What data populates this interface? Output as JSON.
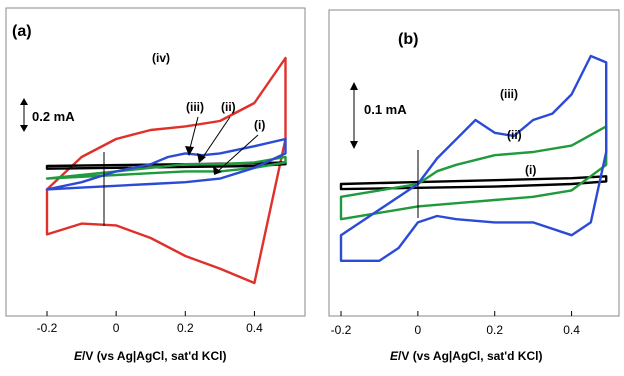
{
  "chart_data": [
    {
      "id": "a",
      "type": "line",
      "panel_label": "(a)",
      "xlabel": {
        "symbol": "E",
        "rest": "/V (vs Ag|AgCl, sat'd KCl)"
      },
      "xlim": [
        -0.2,
        0.5
      ],
      "xticks": [
        -0.2,
        0,
        0.2,
        0.4
      ],
      "tick_labels": [
        "-0.2",
        "0",
        "0.2",
        "0.4"
      ],
      "current_units": "mA",
      "scale_bar": {
        "label": "0.2 mA",
        "value": 0.2
      },
      "series": [
        {
          "name": "(i)",
          "color": "#000000",
          "x": [
            -0.2,
            0.0,
            0.2,
            0.4,
            0.49,
            0.49,
            0.4,
            0.2,
            0.0,
            -0.2,
            -0.2
          ],
          "y": [
            0.05,
            0.055,
            0.06,
            0.065,
            0.07,
            0.06,
            0.05,
            0.045,
            0.04,
            0.035,
            0.05
          ]
        },
        {
          "name": "(ii)",
          "color": "#1f9a3c",
          "x": [
            -0.2,
            -0.1,
            0.0,
            0.1,
            0.2,
            0.3,
            0.4,
            0.49,
            0.49,
            0.4,
            0.3,
            0.2,
            0.1,
            0.0,
            -0.1,
            -0.2,
            -0.2
          ],
          "y": [
            -0.02,
            0.0,
            0.02,
            0.04,
            0.06,
            0.06,
            0.07,
            0.1,
            0.07,
            0.04,
            0.02,
            0.02,
            0.01,
            0.0,
            -0.01,
            -0.02,
            -0.02
          ]
        },
        {
          "name": "(iii)",
          "color": "#2b4bd6",
          "x": [
            -0.2,
            -0.1,
            0.0,
            0.1,
            0.15,
            0.2,
            0.25,
            0.3,
            0.4,
            0.49,
            0.49,
            0.4,
            0.3,
            0.2,
            0.1,
            0.0,
            -0.1,
            -0.2,
            -0.2
          ],
          "y": [
            -0.08,
            -0.04,
            0.02,
            0.06,
            0.1,
            0.12,
            0.11,
            0.12,
            0.16,
            0.2,
            0.12,
            0.04,
            -0.02,
            -0.04,
            -0.05,
            -0.06,
            -0.07,
            -0.08,
            -0.08
          ]
        },
        {
          "name": "(iv)",
          "color": "#e0302a",
          "x": [
            -0.2,
            -0.1,
            0.0,
            0.1,
            0.2,
            0.3,
            0.4,
            0.49,
            0.49,
            0.4,
            0.3,
            0.2,
            0.1,
            0.0,
            -0.1,
            -0.2,
            -0.2
          ],
          "y": [
            -0.08,
            0.1,
            0.2,
            0.25,
            0.27,
            0.3,
            0.4,
            0.65,
            0.2,
            -0.6,
            -0.52,
            -0.45,
            -0.35,
            -0.28,
            -0.27,
            -0.33,
            -0.08
          ]
        }
      ],
      "curve_labels": [
        "(iv)",
        "(iii)",
        "(ii)",
        "(i)"
      ]
    },
    {
      "id": "b",
      "type": "line",
      "panel_label": "(b)",
      "xlabel": {
        "symbol": "E",
        "rest": "/V (vs Ag|AgCl, sat'd KCl)"
      },
      "xlim": [
        -0.2,
        0.5
      ],
      "xticks": [
        -0.2,
        0,
        0.2,
        0.4
      ],
      "tick_labels": [
        "-0.2",
        "0",
        "0.2",
        "0.4"
      ],
      "current_units": "mA",
      "scale_bar": {
        "label": "0.1 mA",
        "value": 0.1
      },
      "series": [
        {
          "name": "(i)",
          "color": "#000000",
          "x": [
            -0.2,
            0.0,
            0.2,
            0.4,
            0.49,
            0.49,
            0.4,
            0.2,
            0.0,
            -0.2,
            -0.2
          ],
          "y": [
            0.0,
            0.003,
            0.006,
            0.009,
            0.012,
            0.004,
            0.0,
            -0.004,
            -0.006,
            -0.008,
            0.0
          ]
        },
        {
          "name": "(ii)",
          "color": "#1f9a3c",
          "x": [
            -0.2,
            -0.1,
            0.0,
            0.05,
            0.1,
            0.2,
            0.3,
            0.4,
            0.49,
            0.49,
            0.4,
            0.3,
            0.2,
            0.1,
            0.0,
            -0.1,
            -0.2,
            -0.2
          ],
          "y": [
            -0.02,
            -0.01,
            0.0,
            0.02,
            0.03,
            0.045,
            0.05,
            0.06,
            0.09,
            0.03,
            -0.01,
            -0.02,
            -0.025,
            -0.03,
            -0.035,
            -0.045,
            -0.055,
            -0.02
          ]
        },
        {
          "name": "(iii)",
          "color": "#2b4bd6",
          "x": [
            -0.2,
            -0.1,
            0.0,
            0.05,
            0.1,
            0.15,
            0.2,
            0.25,
            0.3,
            0.35,
            0.4,
            0.45,
            0.49,
            0.49,
            0.45,
            0.4,
            0.3,
            0.2,
            0.1,
            0.05,
            0.0,
            -0.05,
            -0.1,
            -0.2,
            -0.2
          ],
          "y": [
            -0.08,
            -0.04,
            0.0,
            0.04,
            0.07,
            0.1,
            0.08,
            0.075,
            0.1,
            0.11,
            0.14,
            0.2,
            0.19,
            0.05,
            -0.06,
            -0.08,
            -0.06,
            -0.06,
            -0.055,
            -0.05,
            -0.06,
            -0.1,
            -0.12,
            -0.12,
            -0.08
          ]
        }
      ],
      "curve_labels": [
        "(iii)",
        "(ii)",
        "(i)"
      ]
    }
  ]
}
